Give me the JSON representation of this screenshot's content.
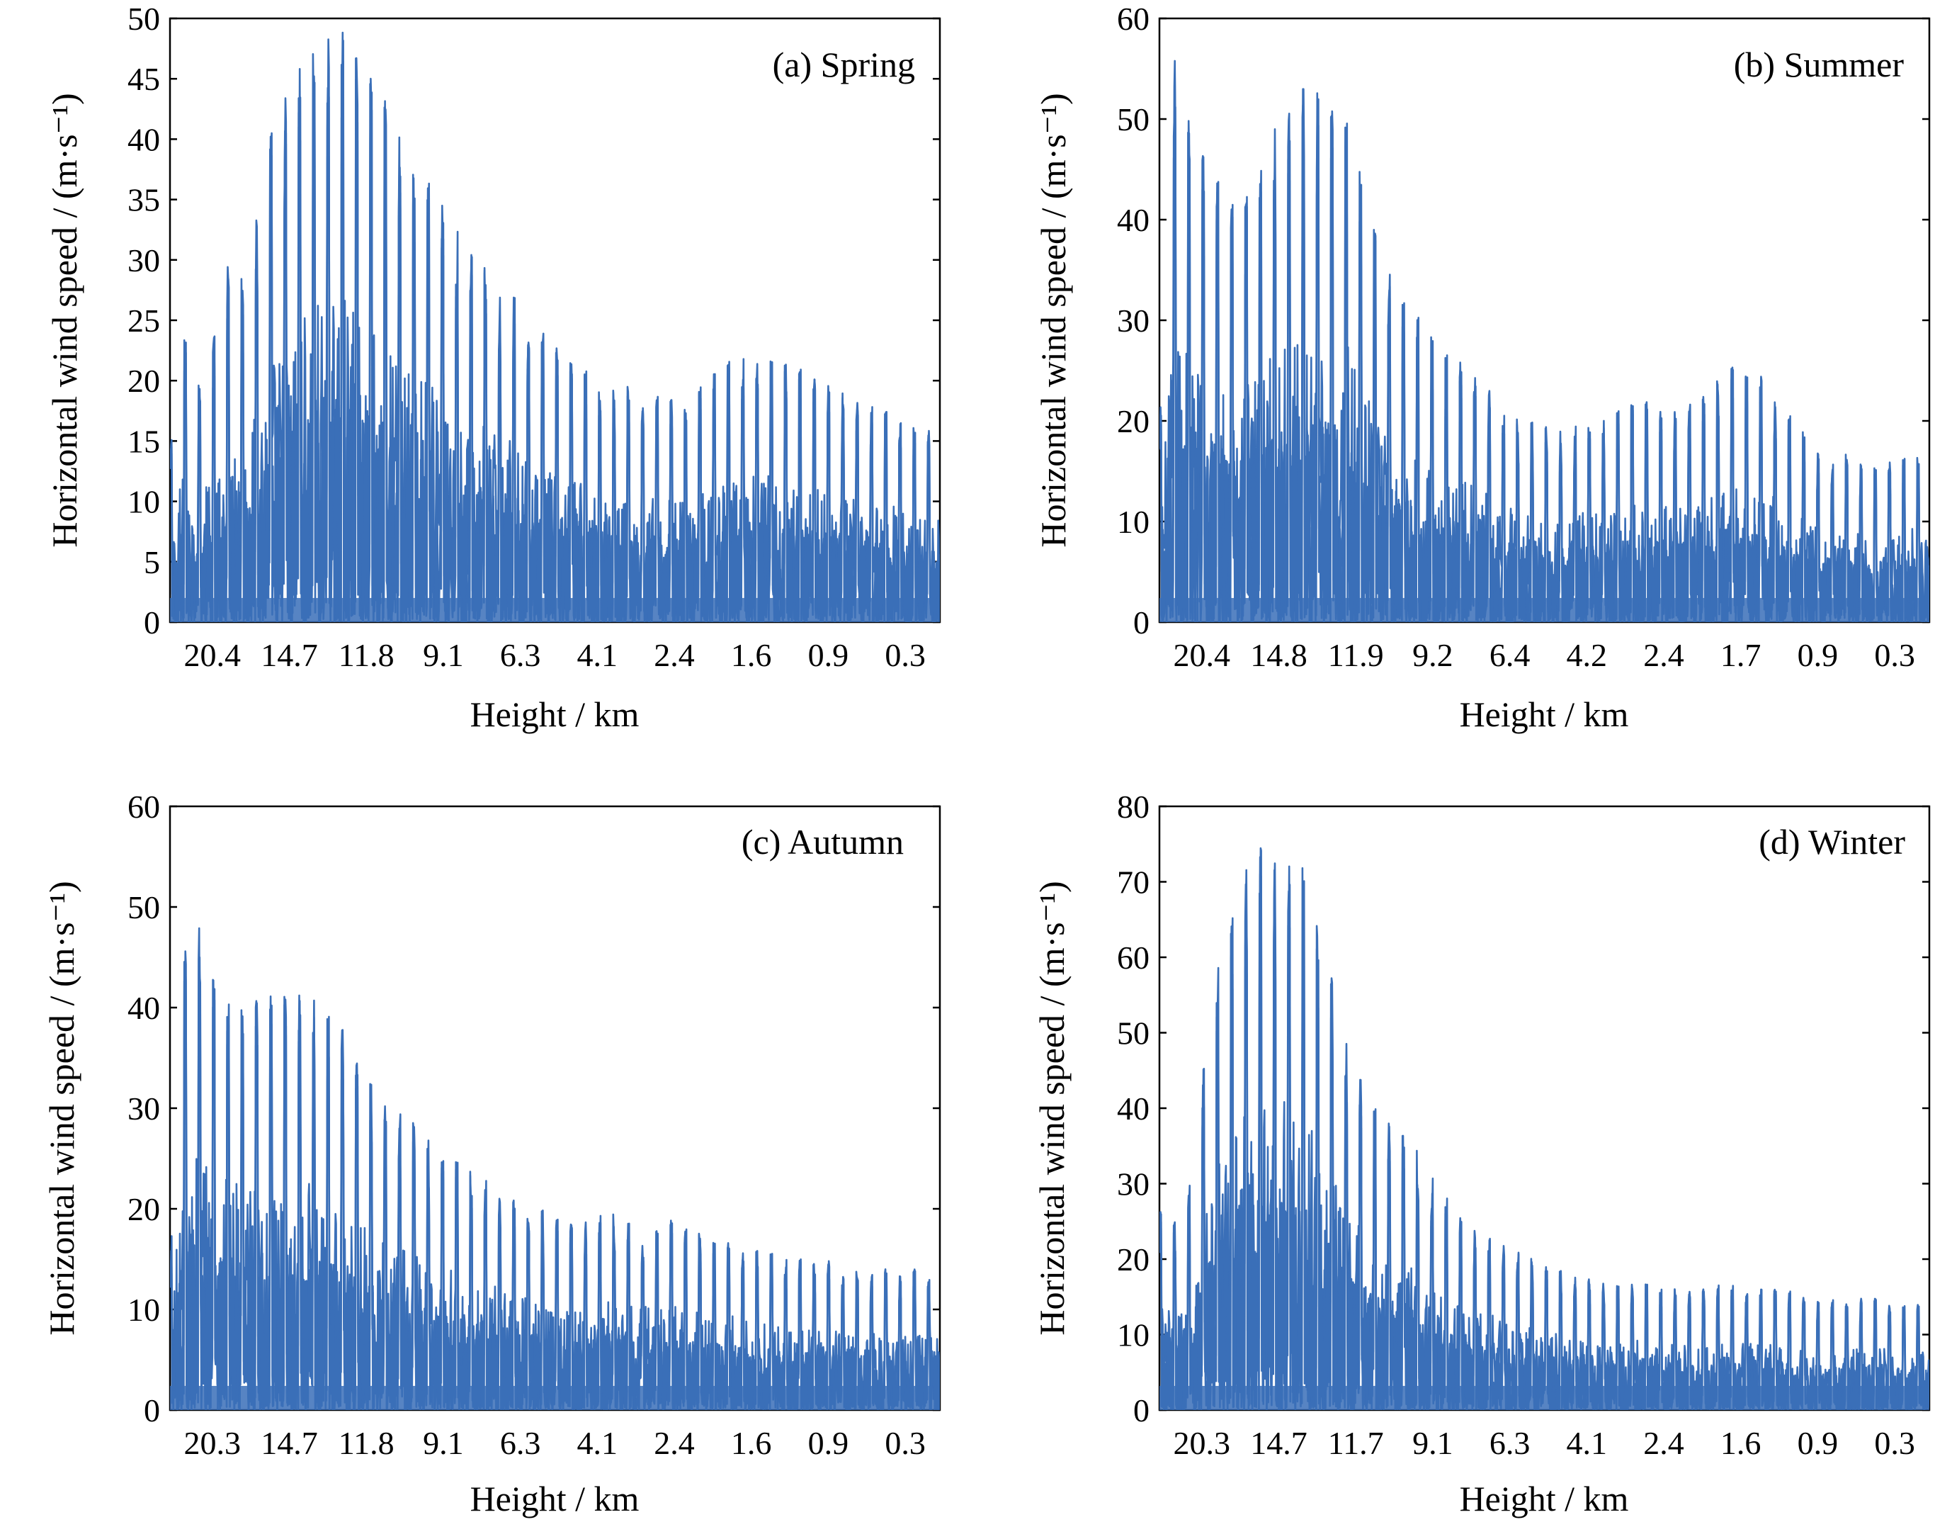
{
  "series_color": "#3a6fb8",
  "chart_data": [
    {
      "type": "line",
      "panel_label": "(a) Spring",
      "xlabel": "Height / km",
      "ylabel": "Horizontal wind speed / (m·s⁻¹)",
      "ylim": [
        0,
        50
      ],
      "yticks": [
        0,
        5,
        10,
        15,
        20,
        25,
        30,
        35,
        40,
        45,
        50
      ],
      "xtick_labels": [
        "20.4",
        "14.7",
        "11.8",
        "9.1",
        "6.3",
        "4.1",
        "2.4",
        "1.6",
        "0.9",
        "0.3"
      ],
      "grid": false,
      "series": [
        {
          "values": [
            14,
            25,
            19,
            25,
            32,
            27,
            40,
            42,
            46,
            48,
            49,
            49,
            47,
            45,
            43,
            39,
            37,
            36,
            34,
            31,
            30,
            28,
            27,
            24,
            24,
            22,
            22,
            20,
            19,
            20,
            18,
            19,
            19,
            18,
            20,
            21,
            22,
            22,
            22,
            22,
            21,
            21,
            20,
            19,
            18,
            18,
            18,
            17,
            16,
            16
          ]
        }
      ]
    },
    {
      "type": "line",
      "panel_label": "(b) Summer",
      "xlabel": "Height / km",
      "ylabel": "Horizontal wind speed / (m·s⁻¹)",
      "ylim": [
        0,
        60
      ],
      "yticks": [
        0,
        10,
        20,
        30,
        40,
        50,
        60
      ],
      "xtick_labels": [
        "20.4",
        "14.8",
        "11.9",
        "9.2",
        "6.4",
        "4.2",
        "2.4",
        "1.7",
        "0.9",
        "0.3"
      ],
      "grid": false,
      "series": [
        {
          "values": [
            19,
            57,
            50,
            47,
            45,
            41,
            45,
            49,
            51,
            53,
            53,
            51,
            50,
            43,
            37,
            34,
            32,
            29,
            27,
            26,
            25,
            23,
            21,
            20,
            20,
            19,
            19,
            20,
            20,
            21,
            22,
            22,
            21,
            21,
            23,
            23,
            25,
            26,
            25,
            23,
            21,
            19,
            17,
            16,
            17,
            15,
            16,
            16,
            17,
            15
          ]
        }
      ]
    },
    {
      "type": "line",
      "panel_label": "(c) Autumn",
      "xlabel": "Height / km",
      "ylabel": "Horizontal wind speed / (m·s⁻¹)",
      "ylim": [
        0,
        60
      ],
      "yticks": [
        0,
        10,
        20,
        30,
        40,
        50,
        60
      ],
      "xtick_labels": [
        "20.3",
        "14.7",
        "11.8",
        "9.1",
        "6.3",
        "4.1",
        "2.4",
        "1.6",
        "0.9",
        "0.3"
      ],
      "grid": false,
      "series": [
        {
          "values": [
            14,
            51,
            48,
            43,
            42,
            41,
            41,
            42,
            42,
            41,
            40,
            38,
            35,
            32,
            31,
            29,
            28,
            27,
            25,
            24,
            23,
            22,
            21,
            20,
            20,
            19,
            19,
            19,
            20,
            19,
            19,
            18,
            19,
            18,
            18,
            17,
            17,
            16,
            16,
            15,
            15,
            15,
            15,
            14,
            14,
            14,
            14,
            14,
            14,
            15
          ]
        }
      ]
    },
    {
      "type": "line",
      "panel_label": "(d) Winter",
      "xlabel": "Height / km",
      "ylabel": "Horizontal wind speed / (m·s⁻¹)",
      "ylim": [
        0,
        80
      ],
      "yticks": [
        0,
        10,
        20,
        30,
        40,
        50,
        60,
        70,
        80
      ],
      "xtick_labels": [
        "20.3",
        "14.7",
        "11.7",
        "9.1",
        "6.3",
        "4.1",
        "2.4",
        "1.6",
        "0.9",
        "0.3"
      ],
      "grid": false,
      "series": [
        {
          "values": [
            28,
            25,
            31,
            49,
            62,
            70,
            75,
            76,
            75,
            73,
            65,
            57,
            48,
            44,
            41,
            38,
            36,
            32,
            29,
            26,
            24,
            23,
            22,
            21,
            20,
            19,
            18,
            18,
            17,
            17,
            17,
            17,
            16,
            17,
            16,
            16,
            17,
            16,
            16,
            16,
            16,
            15,
            15,
            15,
            15,
            15,
            15,
            14,
            14,
            14
          ]
        }
      ]
    }
  ]
}
